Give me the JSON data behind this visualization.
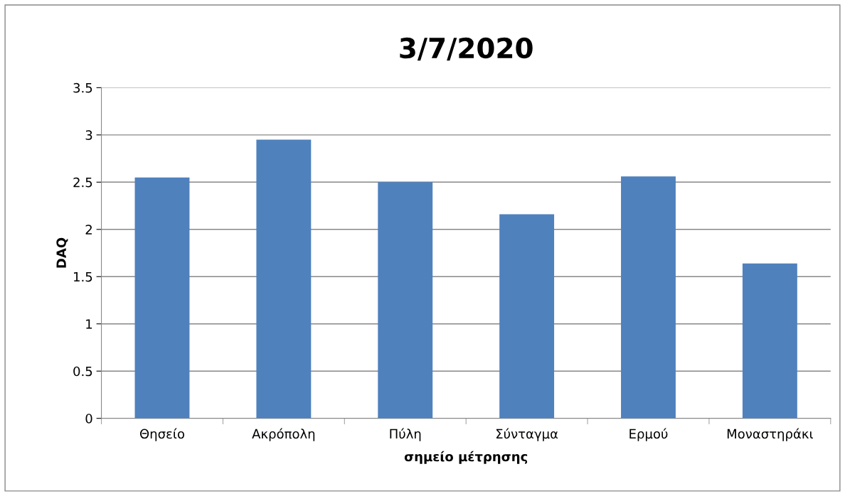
{
  "chart_data": {
    "type": "bar",
    "title": "3/7/2020",
    "xlabel": "σημείο μέτρησης",
    "ylabel": "DAQ",
    "categories": [
      "Θησείο",
      "Ακρόπολη",
      "Πύλη",
      "Σύνταγμα",
      "Ερμού",
      "Μοναστηράκι"
    ],
    "values": [
      2.55,
      2.95,
      2.5,
      2.16,
      2.56,
      1.64
    ],
    "color": "#4f81bd",
    "ylim": [
      0,
      3.5
    ],
    "yticks": [
      0,
      0.5,
      1,
      1.5,
      2,
      2.5,
      3,
      3.5
    ],
    "grid": "y",
    "legend": false
  }
}
